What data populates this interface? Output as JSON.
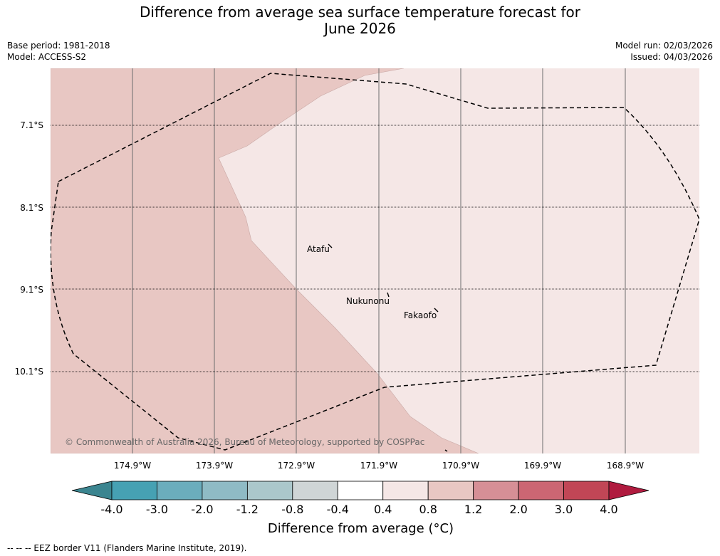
{
  "title_line1": "Difference from average sea surface temperature forecast for",
  "title_line2": "June 2026",
  "base_period": "Base period: 1981-2018",
  "model": "Model: ACCESS-S2",
  "model_run": "Model run: 02/03/2026",
  "issued": "Issued: 04/03/2026",
  "latitudes": [
    "7.1°S",
    "8.1°S",
    "9.1°S",
    "10.1°S"
  ],
  "longitudes": [
    "174.9°W",
    "173.9°W",
    "172.9°W",
    "171.9°W",
    "170.9°W",
    "169.9°W",
    "168.9°W"
  ],
  "places": {
    "atafu": "Atafu",
    "nukunonu": "Nukunonu",
    "fakaofo": "Fakaofo"
  },
  "copyright": "© Commonwealth of Australia 2026, Bureau of Meteorology, supported by COSPPac",
  "colorbar": {
    "ticks": [
      "-4.0",
      "-3.0",
      "-2.0",
      "-1.2",
      "-0.8",
      "-0.4",
      "0.4",
      "0.8",
      "1.2",
      "2.0",
      "3.0",
      "4.0"
    ],
    "colors": [
      "#46a1b3",
      "#6badbd",
      "#8fbbc5",
      "#abc7cb",
      "#cfd5d6",
      "#ffffff",
      "#f5e7e6",
      "#e8c7c3",
      "#d68f96",
      "#cc6673",
      "#c14656"
    ],
    "under_color": "#3b8590",
    "over_color": "#b01b3f",
    "label": "Difference from average (°C)"
  },
  "map_colors": {
    "warm_zone": "#e8c7c3",
    "mild_zone": "#f5e7e6"
  },
  "footer": "--  --  -- EEZ border V11 (Flanders Marine Institute, 2019)."
}
